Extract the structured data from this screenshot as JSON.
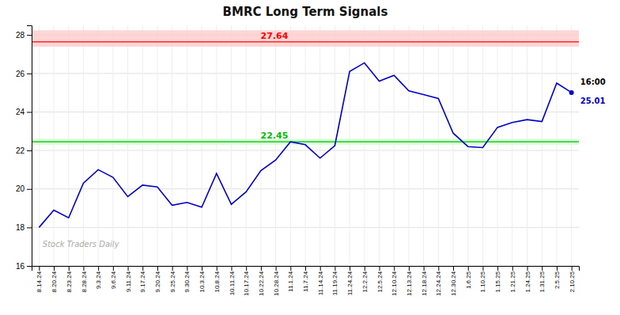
{
  "chart_data": {
    "type": "line",
    "title": "BMRC Long Term Signals",
    "categories": [
      "8.14.24",
      "8.20.24",
      "8.23.24",
      "8.28.24",
      "9.3.24",
      "9.6.24",
      "9.11.24",
      "9.17.24",
      "9.20.24",
      "9.25.24",
      "9.30.24",
      "10.3.24",
      "10.8.24",
      "10.11.24",
      "10.17.24",
      "10.22.24",
      "10.28.24",
      "11.1.24",
      "11.7.24",
      "11.14.24",
      "11.19.24",
      "11.24.24",
      "12.2.24",
      "12.5.24",
      "12.10.24",
      "12.13.24",
      "12.18.24",
      "12.24.24",
      "12.30.24",
      "1.6.25",
      "1.10.25",
      "1.15.25",
      "1.21.25",
      "1.24.25",
      "1.31.25",
      "2.5.25",
      "2.10.25"
    ],
    "values": [
      18.0,
      18.9,
      18.5,
      20.3,
      21.0,
      20.6,
      19.6,
      20.2,
      20.1,
      19.15,
      19.3,
      19.05,
      20.8,
      19.2,
      19.85,
      20.95,
      21.5,
      22.45,
      22.3,
      21.6,
      22.25,
      26.1,
      26.55,
      25.6,
      25.9,
      25.1,
      24.9,
      24.7,
      22.9,
      22.2,
      22.15,
      23.2,
      23.45,
      23.6,
      23.5,
      25.5,
      25.01
    ],
    "color": "#0000cc",
    "reference_lines": [
      {
        "value": 27.64,
        "color": "#ff0000",
        "band": [
          27.39,
          28.24
        ],
        "band_color": "#ffcccc"
      },
      {
        "value": 22.45,
        "color": "#00bb00",
        "band": [
          22.3,
          22.6
        ],
        "band_color": "#ccffcc"
      }
    ],
    "last_point": {
      "time_label": "16:00",
      "value": 25.01,
      "color": "#0000cc"
    },
    "watermark": "Stock Traders Daily",
    "ylim": [
      16,
      28.5
    ],
    "yticks": [
      16,
      18,
      20,
      22,
      24,
      26,
      28
    ],
    "grid": true
  }
}
